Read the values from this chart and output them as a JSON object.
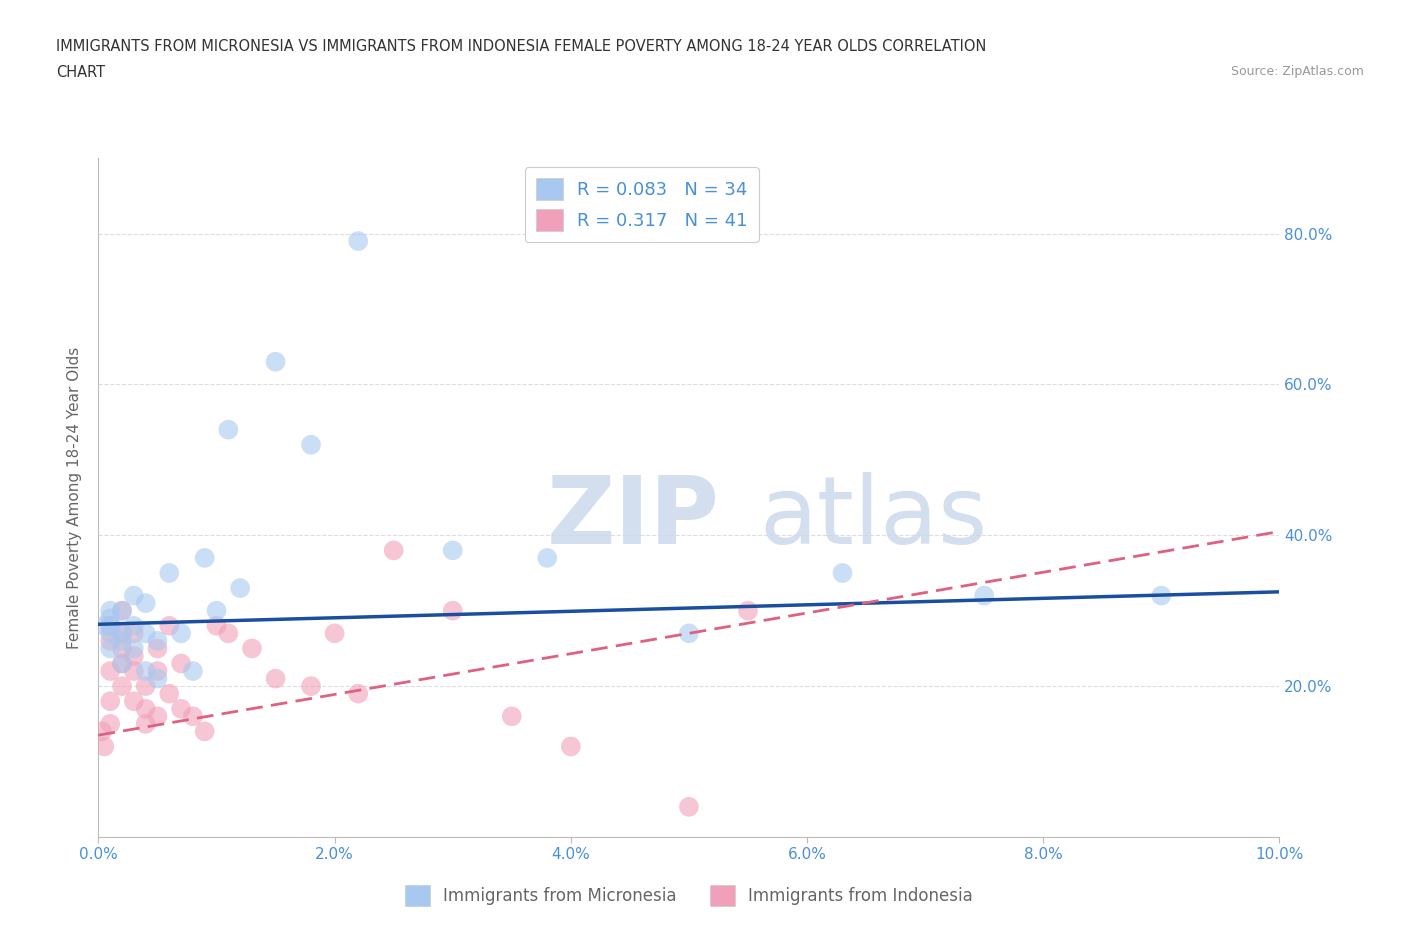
{
  "title_line1": "IMMIGRANTS FROM MICRONESIA VS IMMIGRANTS FROM INDONESIA FEMALE POVERTY AMONG 18-24 YEAR OLDS CORRELATION",
  "title_line2": "CHART",
  "source": "Source: ZipAtlas.com",
  "ylabel": "Female Poverty Among 18-24 Year Olds",
  "legend_label1": "Immigrants from Micronesia",
  "legend_label2": "Immigrants from Indonesia",
  "R1": 0.083,
  "N1": 34,
  "R2": 0.317,
  "N2": 41,
  "watermark_zip": "ZIP",
  "watermark_atlas": "atlas",
  "color_micronesia": "#A8C8F0",
  "color_indonesia": "#F0A0B8",
  "color_line_micronesia": "#1A4FA0",
  "color_line_indonesia": "#E06080",
  "color_axis_text": "#4A90D9",
  "background_color": "#FFFFFF",
  "grid_color": "#DDDDDD",
  "xlim": [
    0.0,
    0.1
  ],
  "ylim": [
    0.0,
    0.9
  ],
  "micronesia_x": [
    0.0005,
    0.001,
    0.001,
    0.001,
    0.001,
    0.001,
    0.002,
    0.002,
    0.002,
    0.002,
    0.003,
    0.003,
    0.003,
    0.004,
    0.004,
    0.004,
    0.005,
    0.005,
    0.006,
    0.007,
    0.008,
    0.009,
    0.01,
    0.011,
    0.012,
    0.015,
    0.018,
    0.022,
    0.03,
    0.038,
    0.05,
    0.063,
    0.075,
    0.09
  ],
  "micronesia_y": [
    0.28,
    0.3,
    0.27,
    0.29,
    0.28,
    0.25,
    0.27,
    0.3,
    0.23,
    0.26,
    0.25,
    0.28,
    0.32,
    0.22,
    0.27,
    0.31,
    0.21,
    0.26,
    0.35,
    0.27,
    0.22,
    0.37,
    0.3,
    0.54,
    0.33,
    0.63,
    0.52,
    0.79,
    0.38,
    0.37,
    0.27,
    0.35,
    0.32,
    0.32
  ],
  "indonesia_x": [
    0.0003,
    0.0005,
    0.001,
    0.001,
    0.001,
    0.001,
    0.001,
    0.002,
    0.002,
    0.002,
    0.002,
    0.002,
    0.003,
    0.003,
    0.003,
    0.003,
    0.004,
    0.004,
    0.004,
    0.005,
    0.005,
    0.005,
    0.006,
    0.006,
    0.007,
    0.007,
    0.008,
    0.009,
    0.01,
    0.011,
    0.013,
    0.015,
    0.018,
    0.02,
    0.022,
    0.025,
    0.03,
    0.035,
    0.04,
    0.05,
    0.055
  ],
  "indonesia_y": [
    0.14,
    0.12,
    0.28,
    0.26,
    0.22,
    0.18,
    0.15,
    0.25,
    0.23,
    0.2,
    0.27,
    0.3,
    0.24,
    0.27,
    0.22,
    0.18,
    0.2,
    0.17,
    0.15,
    0.16,
    0.22,
    0.25,
    0.19,
    0.28,
    0.17,
    0.23,
    0.16,
    0.14,
    0.28,
    0.27,
    0.25,
    0.21,
    0.2,
    0.27,
    0.19,
    0.38,
    0.3,
    0.16,
    0.12,
    0.04,
    0.3
  ],
  "mic_line_x0": 0.0,
  "mic_line_x1": 0.1,
  "mic_line_y0": 0.282,
  "mic_line_y1": 0.325,
  "ind_line_x0": 0.0,
  "ind_line_x1": 0.1,
  "ind_line_y0": 0.135,
  "ind_line_y1": 0.405
}
